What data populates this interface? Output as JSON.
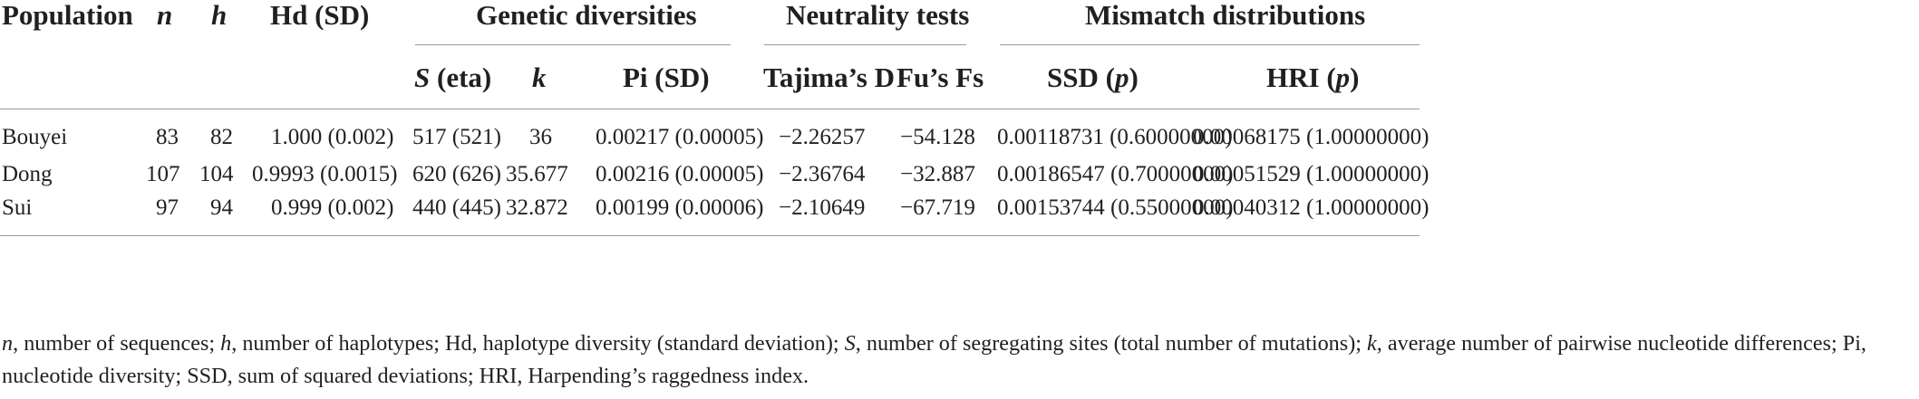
{
  "headers": {
    "population": "Population",
    "n": "n",
    "h": "h",
    "hd": "Hd (SD)",
    "genetic_diversities": "Genetic diversities",
    "neutrality_tests": "Neutrality tests",
    "mismatch_distributions": "Mismatch distributions",
    "s_letter": "S",
    "s_rest": " (eta)",
    "k": "k",
    "pi": "Pi (SD)",
    "tajima": "Tajima’s D",
    "fu": "Fu’s Fs",
    "ssd_text": "SSD (",
    "hri_text": "HRI (",
    "p": "p",
    "close": ")"
  },
  "rows": [
    {
      "population": "Bouyei",
      "n": "83",
      "h": "82",
      "hd": "1.000 (0.002)",
      "s": "517 (521)",
      "k": "36",
      "pi": "0.00217 (0.00005)",
      "tajima": "−2.26257",
      "fu": "−54.128",
      "ssd": "0.00118731 (0.60000000)",
      "hri": "0.00068175 (1.00000000)"
    },
    {
      "population": "Dong",
      "n": "107",
      "h": "104",
      "hd": "0.9993 (0.0015)",
      "s": "620 (626)",
      "k": "35.677",
      "pi": "0.00216 (0.00005)",
      "tajima": "−2.36764",
      "fu": "−32.887",
      "ssd": "0.00186547 (0.70000000)",
      "hri": "0.00051529 (1.00000000)"
    },
    {
      "population": "Sui",
      "n": "97",
      "h": "94",
      "hd": "0.999 (0.002)",
      "s": "440 (445)",
      "k": "32.872",
      "pi": "0.00199 (0.00006)",
      "tajima": "−2.10649",
      "fu": "−67.719",
      "ssd": "0.00153744 (0.55000000)",
      "hri": "0.00040312 (1.00000000)"
    }
  ],
  "footnote": {
    "n_sym": "n",
    "n_def": ", number of sequences; ",
    "h_sym": "h",
    "h_def": ", number of haplotypes; Hd, haplotype diversity (standard deviation); ",
    "s_sym": "S",
    "s_def": ", number of segregating sites (total number of mutations); ",
    "k_sym": "k",
    "k_def": ", average number of pairwise nucleotide differences; Pi, nucleotide diversity; SSD, sum of squared deviations; HRI, Harpending’s raggedness index."
  }
}
